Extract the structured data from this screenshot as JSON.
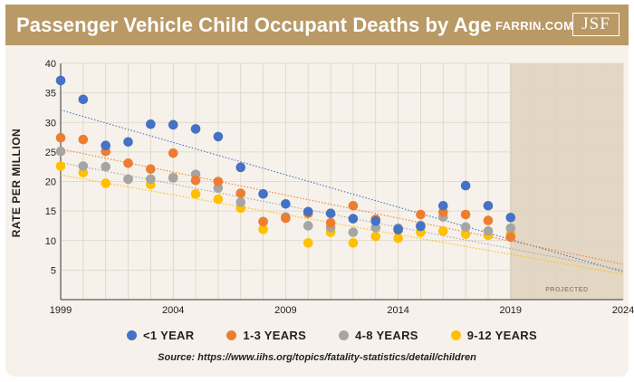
{
  "header": {
    "title": "Passenger Vehicle Child Occupant Deaths by Age",
    "brand": "FARRIN.COM",
    "logo_text": "JSF"
  },
  "colors": {
    "header_bg": "#b99a66",
    "card_bg": "#f6f1ea",
    "projected_bg": "#e3d7c4",
    "grid": "#ddd3c4",
    "lt1": "#4472c4",
    "y1_3": "#ed7d31",
    "y4_8": "#a5a5a5",
    "y9_12": "#ffc000"
  },
  "chart_data": {
    "type": "scatter",
    "title": "Passenger Vehicle Child Occupant Deaths by Age",
    "xlabel": "",
    "ylabel": "RATE PER MILLION",
    "xlim": [
      1999,
      2024
    ],
    "ylim": [
      0,
      40
    ],
    "x_ticks": [
      "1999",
      "2004",
      "2009",
      "2014",
      "2019",
      "2024"
    ],
    "y_ticks": [
      "5",
      "10",
      "15",
      "20",
      "25",
      "30",
      "35",
      "40"
    ],
    "grid": true,
    "projected_region": {
      "from": 2019,
      "to": 2024,
      "label": "PROJECTED"
    },
    "series": [
      {
        "name": "<1 YEAR",
        "color": "#4472c4",
        "x": [
          1999,
          2000,
          2001,
          2002,
          2003,
          2004,
          2005,
          2006,
          2007,
          2008,
          2009,
          2010,
          2011,
          2012,
          2013,
          2014,
          2015,
          2016,
          2017,
          2018,
          2019
        ],
        "y": [
          37.1,
          33.9,
          26.1,
          26.7,
          29.7,
          29.6,
          28.9,
          27.6,
          22.4,
          17.9,
          16.2,
          14.9,
          14.6,
          13.7,
          13.3,
          11.9,
          12.4,
          15.9,
          19.3,
          15.9,
          13.9
        ],
        "trend": [
          32.1,
          4.7
        ]
      },
      {
        "name": "1-3 YEARS",
        "color": "#ed7d31",
        "x": [
          1999,
          2000,
          2001,
          2002,
          2003,
          2004,
          2005,
          2006,
          2007,
          2008,
          2009,
          2010,
          2011,
          2012,
          2013,
          2014,
          2015,
          2016,
          2017,
          2018,
          2019
        ],
        "y": [
          27.4,
          27.1,
          25.1,
          23.1,
          22.1,
          24.8,
          20.2,
          20.0,
          18.0,
          13.2,
          13.8,
          14.6,
          13.0,
          15.9,
          13.6,
          11.8,
          14.4,
          14.8,
          14.4,
          13.4,
          10.6
        ],
        "trend": [
          25.5,
          6.0
        ]
      },
      {
        "name": "4-8 YEARS",
        "color": "#a5a5a5",
        "x": [
          1999,
          2000,
          2001,
          2002,
          2003,
          2004,
          2005,
          2006,
          2007,
          2008,
          2009,
          2010,
          2011,
          2012,
          2013,
          2014,
          2015,
          2016,
          2017,
          2018,
          2019
        ],
        "y": [
          25.1,
          22.6,
          22.5,
          20.4,
          20.4,
          20.6,
          21.2,
          18.9,
          16.5,
          13.2,
          14.0,
          12.5,
          12.2,
          11.4,
          12.2,
          12.1,
          12.6,
          14.0,
          12.3,
          11.6,
          12.1
        ],
        "trend": [
          23.2,
          5.0
        ]
      },
      {
        "name": "9-12 YEARS",
        "color": "#ffc000",
        "x": [
          1999,
          2000,
          2001,
          2002,
          2003,
          2004,
          2005,
          2006,
          2007,
          2008,
          2009,
          2010,
          2011,
          2012,
          2013,
          2014,
          2015,
          2016,
          2017,
          2018,
          2019
        ],
        "y": [
          22.6,
          21.5,
          19.7,
          20.4,
          19.5,
          20.7,
          17.9,
          17.0,
          15.5,
          11.9,
          13.8,
          9.6,
          11.4,
          9.6,
          10.7,
          10.4,
          11.4,
          11.6,
          11.1,
          10.9,
          11.1
        ],
        "trend": [
          21.1,
          4.3
        ]
      }
    ]
  },
  "legend": {
    "items": [
      {
        "label": "<1 YEAR",
        "color": "#4472c4"
      },
      {
        "label": "1-3 YEARS",
        "color": "#ed7d31"
      },
      {
        "label": "4-8 YEARS",
        "color": "#a5a5a5"
      },
      {
        "label": "9-12 YEARS",
        "color": "#ffc000"
      }
    ]
  },
  "source": "Source: https://www.iihs.org/topics/fatality-statistics/detail/children"
}
